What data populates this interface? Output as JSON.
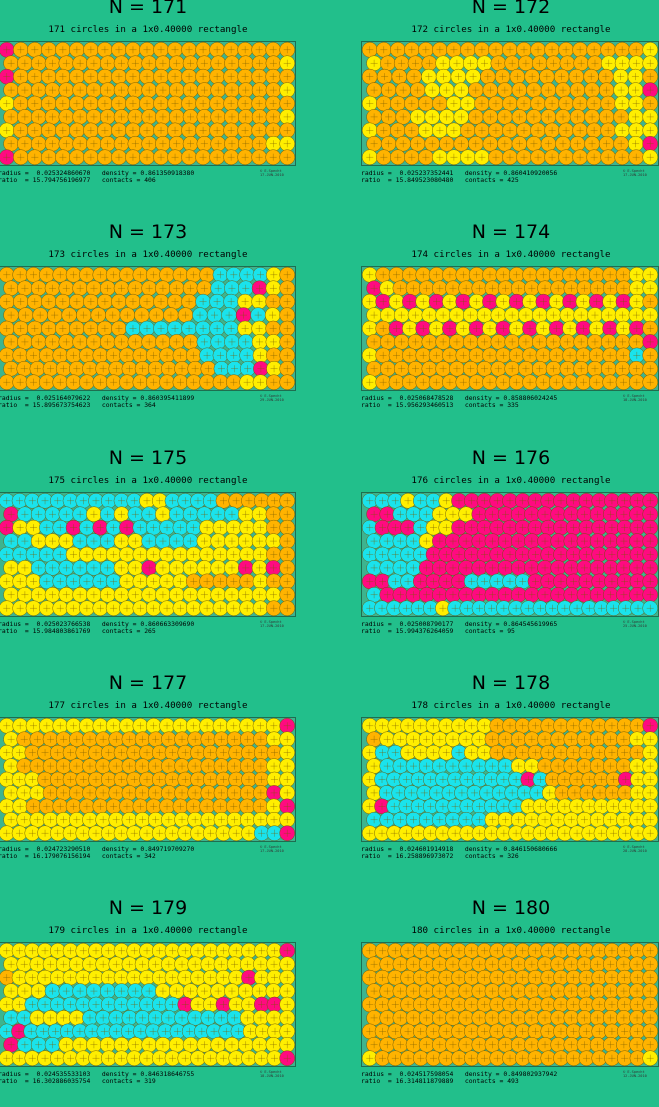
{
  "colors": {
    "background": "#22bf8b",
    "box_fill": "#3db48f",
    "orange": "#ffb300",
    "yellow": "#ffee00",
    "cyan": "#1ae3ec",
    "magenta": "#ff0a80"
  },
  "panels": [
    {
      "title": "N = 171",
      "subtitle": "171 circles in a 1x0.40000 rectangle",
      "radius_label": "radius =",
      "radius": "0.025324860670",
      "density_label": "density =",
      "density": "0.861350918380",
      "ratio_label": "ratio  =",
      "ratio": "15.794756196977",
      "contacts_label": "contacts =",
      "contacts": "406",
      "copyright": "© E.Specht",
      "date": "17-JUN-2010",
      "rows": [
        "Coooooooooooooooooooo",
        "ooooooooooooooooooooy",
        "Coooooooooooooooooooo",
        "ooooooooooooooooooooy",
        "yoooooooooooooooooooo",
        "ooooooooooooooooooooy",
        "yoooooooooooooooooooo",
        "oooooooooooooooooooyy",
        "Moooooooooooooooooooo"
      ]
    },
    {
      "title": "N = 172",
      "subtitle": "172 circles in a 1x0.40000 rectangle",
      "radius_label": "radius =",
      "radius": "0.025237352441",
      "density_label": "density =",
      "density": "0.860410920056",
      "ratio_label": "ratio  =",
      "ratio": "15.849523080480",
      "contacts_label": "contacts =",
      "contacts": "425",
      "copyright": "© E.Specht",
      "date": "17-JUN-2010",
      "rows": [
        "ooooooooooooooooooooy",
        "yooooyyyyooooooooyyyy",
        "ooooyyyyoooooooooyyo",
        "ooooyyyooooooooooyyM",
        "yoooooyyooooooooooyyo",
        "oooyyyyoooooooooooyy",
        "yoooyyyoooooooooooyyy",
        "ooooooooooooooooooyM",
        "yooooyyyyoooooooooooy"
      ]
    },
    {
      "title": "N = 173",
      "subtitle": "173 circles in a 1x0.40000 rectangle",
      "radius_label": "radius =",
      "radius": "0.025164079622",
      "density_label": "density =",
      "density": "0.860395411899",
      "ratio_label": "ratio  =",
      "ratio": "15.895673754623",
      "contacts_label": "contacts =",
      "contacts": "364",
      "copyright": "© E.Specht",
      "date": "29-JUN-2010",
      "rows": [
        "ooooooooooooooooccccyo",
        "ooooooooooooooocccMyo",
        "oooooooooooooocccyyoo",
        "ooooooooooooocccMcyo",
        "oooooooooccccccccyyoo",
        "ooooooooooooooccccyyo",
        "oooooooooooooooccccyoo",
        "oooooooooooooooocccMyo",
        "ooooooooooooooooooyyoo"
      ]
    },
    {
      "title": "N = 174",
      "subtitle": "174 circles in a 1x0.40000 rectangle",
      "radius_label": "radius =",
      "radius": "0.025068478528",
      "density_label": "density =",
      "density": "0.858806024245",
      "ratio_label": "ratio  =",
      "ratio": "15.956293460513",
      "contacts_label": "contacts =",
      "contacts": "335",
      "copyright": "© E.Specht",
      "date": "18-JUN-2010",
      "rows": [
        "yoooooooooooooooooooyy",
        "Myooooooooooooooooooyy",
        "yMyMyMyMyMyMyMyMyMyMyo",
        "yyyyyyyyyyyyyyyyyyyyy",
        "yoMyMyMyMyMyMyMyMyMyMo",
        "ooooooooooooooooooooM",
        "yoooooooooooooooooooco",
        "ooooooooooooooooooooo",
        "yooooooooooooooooooooo"
      ]
    },
    {
      "title": "N = 175",
      "subtitle": "175 circles in a 1x0.40000 rectangle",
      "radius_label": "radius =",
      "radius": "0.025023766538",
      "density_label": "density =",
      "density": "0.860663309690",
      "ratio_label": "ratio  =",
      "ratio": "15.984803861769",
      "contacts_label": "contacts =",
      "contacts": "265",
      "copyright": "© E.Specht",
      "date": "17-JUN-2010",
      "rows": [
        "cccccccccccyyccccoooooo",
        "Mcccccycyccycccccyyoo",
        "MyyccMcMcMcccccyyyyyoo",
        "ccyyycccyyccccyyyyyyo",
        "cccccyyyyyyyyyyyyyyyoo",
        "yyccccccyyMyyyyyyMyMo",
        "yyyccccccyyyyyoooooyoo",
        "yyyyyyyyyyyyyyyyyyyyo",
        "yyyyyyyyyyyyyyyyyyyyoo"
      ]
    },
    {
      "title": "N = 176",
      "subtitle": "176 circles in a 1x0.40000 rectangle",
      "radius_label": "radius =",
      "radius": "0.025008790177",
      "density_label": "density =",
      "density": "0.864545619965",
      "ratio_label": "ratio  =",
      "ratio": "15.994376264059",
      "contacts_label": "contacts =",
      "contacts": "95",
      "copyright": "© E.Specht",
      "date": "25-JUN-2010",
      "rows": [
        "cccyccyMMMMMMMMMMMMMMMM",
        "MMcccyyyMMMMMMMMMMMMMM",
        "cMMMcyyMMMMMMMMMMMMMMMM",
        "ccccyMMMMMMMMMMMMMMMMM",
        "cccccMMMMMMMMMMMMMMMMMM",
        "ccccMMMMMMMMMMMMMMMMMM",
        "MMccMMMMcccccMMMMMMMMMM",
        "cMMMMMMMMMMMMMMMMMMMMM",
        "ccccccyccccccccccccccccc"
      ]
    },
    {
      "title": "N = 177",
      "subtitle": "177 circles in a 1x0.40000 rectangle",
      "radius_label": "radius =",
      "radius": "0.024723290510",
      "density_label": "density =",
      "density": "0.849719709270",
      "ratio_label": "ratio  =",
      "ratio": "16.179076156194",
      "contacts_label": "contacts =",
      "contacts": "342",
      "copyright": "© E.Specht",
      "date": "17-JUN-2010",
      "rows": [
        "yyyyyyyyyyyyyyyyyyyyyM",
        "yoooooooooooooooooooyy",
        "yyooooooooooooooooooooy",
        "yoooooooooooooooooooyy",
        "yyyooooooooooooooooooyy",
        "yyyoooooooooooooooooMy",
        "yyooooooooooooooooooyM",
        "yyyyyyyyyyyyyyyyyyyyyy",
        "yyyyyyyyyyyyyyyyyyyyccM"
      ]
    },
    {
      "title": "N = 178",
      "subtitle": "178 circles in a 1x0.40000 rectangle",
      "radius_label": "radius =",
      "radius": "0.024601914918",
      "density_label": "density =",
      "density": "0.846150680666",
      "ratio_label": "ratio  =",
      "ratio": "16.258896973072",
      "contacts_label": "contacts =",
      "contacts": "326",
      "copyright": "© E.Specht",
      "date": "28-JUN-2010",
      "rows": [
        "yyyyyyyyyyooooooooooooM",
        "oyyyyyyyyoooooooooooyy",
        "yccyyyycyyooooooooooooy",
        "yccccccccccyyoooooooyy",
        "yccccccccccccMcooooooMyy",
        "ycccccccccccccyooooooyy",
        "yMcccccccccccyyyyyyyyyyy",
        "cccccccccyyyyyyyyyyyyy",
        "yyyyyyyyyyyyyyyyyyyyyyyy"
      ]
    },
    {
      "title": "N = 179",
      "subtitle": "179 circles in a 1x0.40000 rectangle",
      "radius_label": "radius =",
      "radius": "0.024535533103",
      "density_label": "density =",
      "density": "0.846318646755",
      "ratio_label": "ratio  =",
      "ratio": "16.302886035754",
      "contacts_label": "contacts =",
      "contacts": "319",
      "copyright": "© E.Specht",
      "date": "18-JUN-2010",
      "rows": [
        "yyyyyyyyyyyyyyyyyyyyyyM",
        "yyyyyyyyyyyyyyyyyyyyyy",
        "oyyyyyyyyyyyyyyyyyyMyyy",
        "yyyccccccccyyyyyyyyyy",
        "yyccccccccccccMyyMyyMMy",
        "ccyyyyccccccccccccyyyy",
        "cMccccccccccccccccccyyyy",
        "Mcccyyyyyyyyyyyyyyyyy",
        "yyyyyyyyyyyyyyyyyyyyyyM"
      ]
    },
    {
      "title": "N = 180",
      "subtitle": "180 circles in a 1x0.40000 rectangle",
      "radius_label": "radius =",
      "radius": "0.024517598054",
      "density_label": "density =",
      "density": "0.849802937942",
      "ratio_label": "ratio  =",
      "ratio": "16.314811879889",
      "contacts_label": "contacts =",
      "contacts": "493",
      "copyright": "© E.Specht",
      "date": "12-JUN-2010",
      "rows": [
        "ooooooooooooooooooooooo",
        "oooooooooooooooooooooo",
        "ooooooooooooooooooooooo",
        "oooooooooooooooooooooo",
        "ooooooooooooooooooooooo",
        "oooooooooooooooooooooo",
        "ooooooooooooooooooooooo",
        "oooooooooooooooooooooo",
        "yoooooooooooooooooooooy"
      ]
    }
  ]
}
